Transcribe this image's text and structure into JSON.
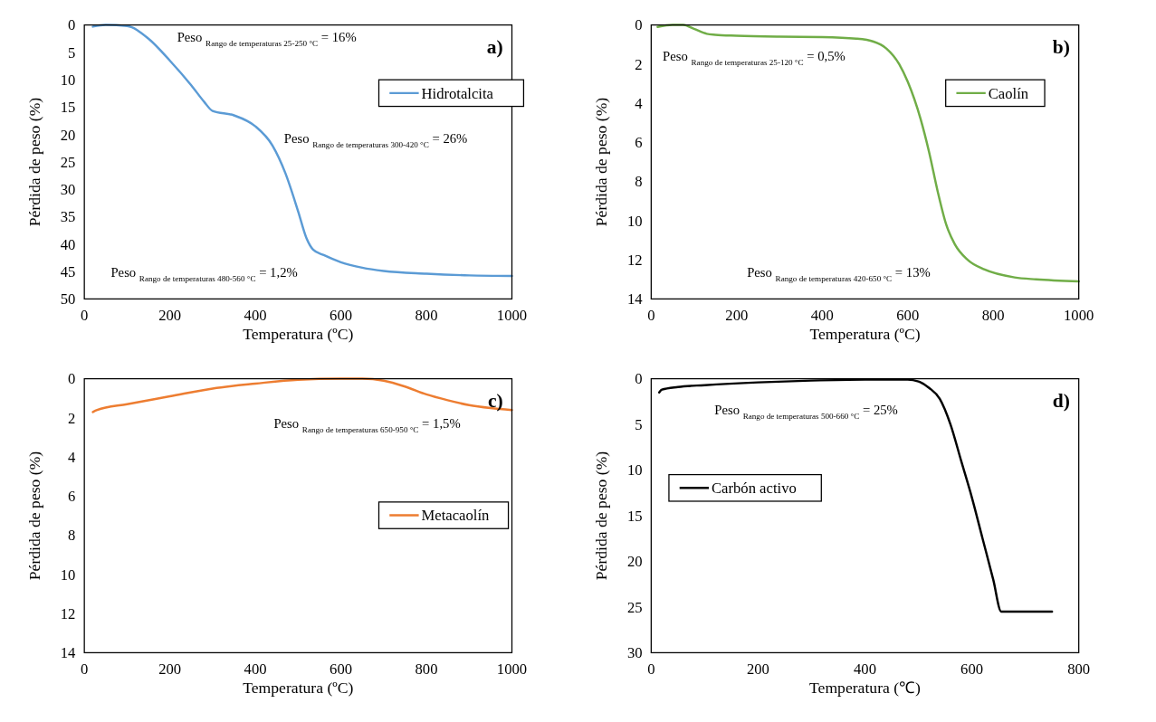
{
  "chart_data": [
    {
      "type": "line",
      "title": "a)",
      "xlabel": "Temperatura (ºC)",
      "ylabel": "Pérdida de peso (%)",
      "xlim": [
        0,
        1000
      ],
      "xticks": [
        0,
        200,
        400,
        600,
        800,
        1000
      ],
      "ylim": [
        50,
        0
      ],
      "yticks": [
        0,
        5,
        10,
        15,
        20,
        25,
        30,
        35,
        40,
        45,
        50
      ],
      "legend": "top right",
      "series": [
        {
          "name": "Hidrotalcita",
          "color": "#5b9bd5",
          "x": [
            20,
            50,
            100,
            150,
            200,
            250,
            280,
            300,
            350,
            400,
            440,
            470,
            500,
            520,
            535,
            560,
            600,
            650,
            700,
            800,
            900,
            1000
          ],
          "values": [
            0.3,
            0,
            0.2,
            2.5,
            6.5,
            11,
            14,
            15.7,
            16.5,
            18.5,
            22,
            27,
            34,
            39,
            41,
            42,
            43.3,
            44.3,
            44.9,
            45.4,
            45.7,
            45.8
          ]
        }
      ],
      "annotations": [
        "Peso $_{Rango de temperaturas 25-250 °C}$ = 16%",
        "Peso $_{Rango de temperaturas 300-420 °C}$ = 26%",
        "Peso $_{Rango de temperaturas 480-560 °C}$ = 1,2%"
      ]
    },
    {
      "type": "line",
      "title": "b)",
      "xlabel": "Temperatura (ºC)",
      "ylabel": "Pérdida de peso (%)",
      "xlim": [
        0,
        1000
      ],
      "xticks": [
        0,
        200,
        400,
        600,
        800,
        1000
      ],
      "ylim": [
        14,
        0
      ],
      "yticks": [
        0,
        2,
        4,
        6,
        8,
        10,
        12,
        14
      ],
      "legend": "top right",
      "series": [
        {
          "name": "Caolín",
          "color": "#70ad47",
          "x": [
            15,
            50,
            75,
            100,
            130,
            150,
            200,
            300,
            400,
            480,
            520,
            550,
            580,
            600,
            630,
            650,
            670,
            690,
            710,
            740,
            780,
            850,
            900,
            1000
          ],
          "values": [
            0.1,
            0,
            0,
            0.2,
            0.45,
            0.5,
            0.55,
            0.6,
            0.62,
            0.7,
            0.85,
            1.2,
            2,
            2.9,
            4.8,
            6.5,
            8.5,
            10.2,
            11.2,
            12,
            12.5,
            12.9,
            13,
            13.1
          ]
        }
      ],
      "annotations": [
        "Peso $_{Rango de temperaturas 25-120 °C}$ = 0,5%",
        "Peso $_{Rango de temperaturas 420-650 °C}$ = 13%"
      ]
    },
    {
      "type": "line",
      "title": "c)",
      "xlabel": "Temperatura (ºC)",
      "ylabel": "Pérdida de peso (%)",
      "xlim": [
        0,
        1000
      ],
      "xticks": [
        0,
        200,
        400,
        600,
        800,
        1000
      ],
      "ylim": [
        14,
        0
      ],
      "yticks": [
        0,
        2,
        4,
        6,
        8,
        10,
        12,
        14
      ],
      "legend": "right",
      "series": [
        {
          "name": "Metacaolín",
          "color": "#ed7d31",
          "x": [
            20,
            30,
            100,
            200,
            300,
            400,
            500,
            600,
            650,
            700,
            750,
            800,
            850,
            900,
            950,
            1000
          ],
          "values": [
            1.7,
            1.6,
            1.3,
            0.9,
            0.5,
            0.25,
            0.05,
            0,
            0,
            0.1,
            0.4,
            0.8,
            1.1,
            1.35,
            1.5,
            1.6
          ]
        }
      ],
      "annotations": [
        "Peso $_{Rango de temperaturas 650-950 °C}$ = 1,5%"
      ]
    },
    {
      "type": "line",
      "title": "d)",
      "xlabel": "Temperatura (℃)",
      "ylabel": "Pérdida de peso (%)",
      "xlim": [
        0,
        800
      ],
      "xticks": [
        0,
        200,
        400,
        600,
        800
      ],
      "ylim": [
        30,
        0
      ],
      "yticks": [
        0,
        5,
        10,
        15,
        20,
        25,
        30
      ],
      "legend": "left",
      "series": [
        {
          "name": "Carbón activo",
          "color": "#000000",
          "x": [
            15,
            20,
            50,
            100,
            200,
            300,
            400,
            480,
            500,
            520,
            540,
            560,
            580,
            600,
            620,
            640,
            655,
            700,
            750
          ],
          "values": [
            1.5,
            1.2,
            0.9,
            0.7,
            0.4,
            0.2,
            0.1,
            0.1,
            0.3,
            1,
            2.2,
            5,
            9,
            13,
            17.5,
            22,
            25.5,
            25.5,
            25.5
          ]
        }
      ],
      "annotations": [
        "Peso $_{Rango de temperaturas 500-660 °C}$ = 25%"
      ]
    }
  ]
}
